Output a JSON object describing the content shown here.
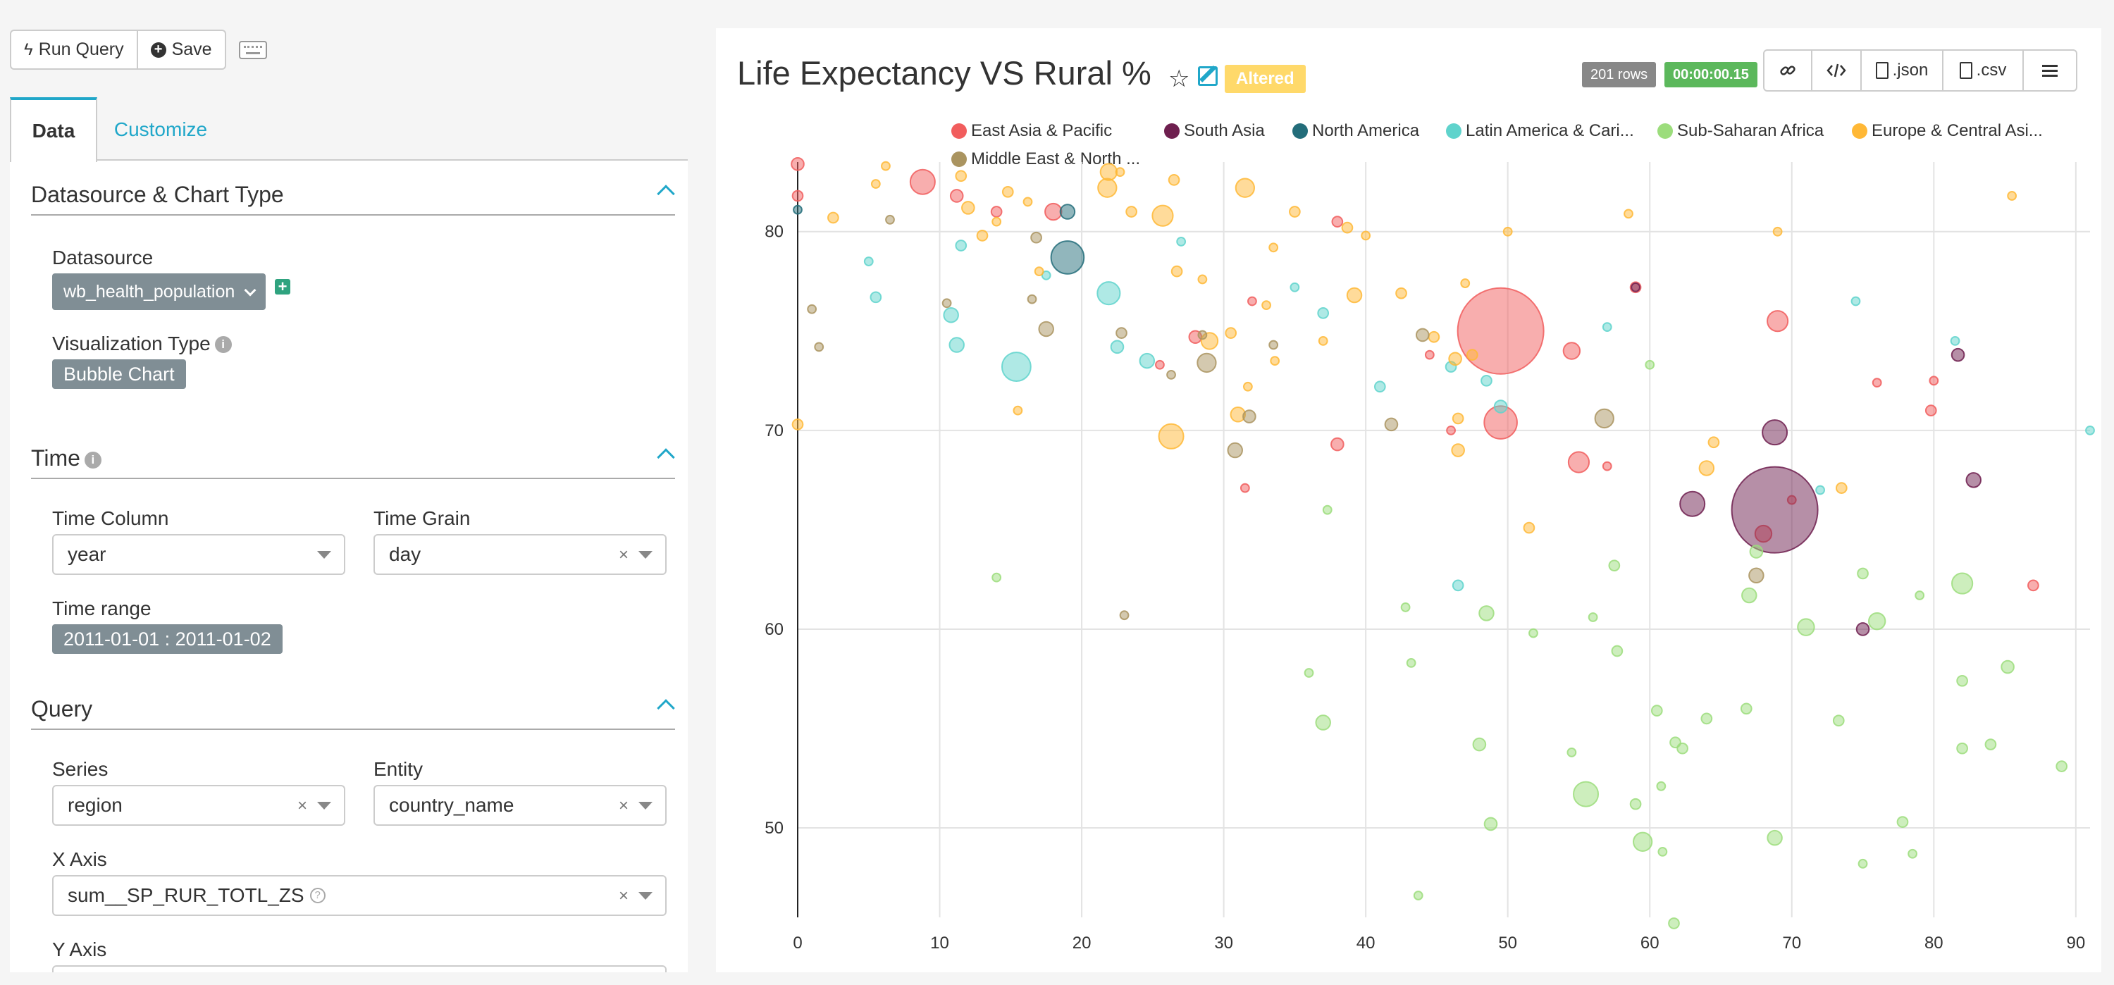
{
  "toolbar": {
    "run_query_label": "Run Query",
    "save_label": "Save"
  },
  "tabs": {
    "data": "Data",
    "customize": "Customize"
  },
  "sections": {
    "datasource": {
      "title": "Datasource & Chart Type",
      "datasource_label": "Datasource",
      "datasource_value": "wb_health_population",
      "viz_type_label": "Visualization Type",
      "viz_type_value": "Bubble Chart"
    },
    "time": {
      "title": "Time",
      "time_column_label": "Time Column",
      "time_column_value": "year",
      "time_grain_label": "Time Grain",
      "time_grain_value": "day",
      "time_range_label": "Time range",
      "time_range_value": "2011-01-01 : 2011-01-02"
    },
    "query": {
      "title": "Query",
      "series_label": "Series",
      "series_value": "region",
      "entity_label": "Entity",
      "entity_value": "country_name",
      "x_axis_label": "X Axis",
      "x_axis_value": "sum__SP_RUR_TOTL_ZS",
      "y_axis_label": "Y Axis"
    }
  },
  "chart_header": {
    "title": "Life Expectancy VS Rural %",
    "altered_label": "Altered",
    "rows_badge": "201 rows",
    "time_badge": "00:00:00.15",
    "json_label": ".json",
    "csv_label": ".csv"
  },
  "chart_data": {
    "type": "scatter",
    "title": "Life Expectancy VS Rural %",
    "xlabel": "",
    "ylabel": "",
    "xlim": [
      0,
      91
    ],
    "ylim": [
      45.5,
      83.5
    ],
    "x_ticks": [
      0,
      10,
      20,
      30,
      40,
      50,
      60,
      70,
      80,
      90
    ],
    "y_ticks": [
      50,
      60,
      70,
      80
    ],
    "grid": true,
    "legend_position": "top",
    "series": [
      {
        "name": "East Asia & Pacific",
        "color": "#f15d5d",
        "points": [
          [
            0,
            83.4,
            2
          ],
          [
            0,
            81.8,
            1.5
          ],
          [
            8.8,
            82.5,
            5
          ],
          [
            11.2,
            81.8,
            2
          ],
          [
            14,
            81,
            1.5
          ],
          [
            18,
            81,
            3
          ],
          [
            49.5,
            75,
            20
          ],
          [
            54.5,
            74,
            3
          ],
          [
            69,
            75.5,
            4
          ],
          [
            49.5,
            70.4,
            7
          ],
          [
            55,
            68.4,
            4
          ],
          [
            57,
            68.2,
            1
          ],
          [
            68,
            64.8,
            3
          ],
          [
            70,
            66.5,
            1
          ],
          [
            79.8,
            71,
            1.5
          ],
          [
            87,
            62.2,
            1.5
          ],
          [
            38,
            69.3,
            2
          ],
          [
            32,
            76.5,
            1
          ],
          [
            25.5,
            73.3,
            1
          ],
          [
            31.5,
            67.1,
            1
          ],
          [
            28,
            74.7,
            2
          ],
          [
            38,
            80.5,
            1.5
          ],
          [
            59,
            77.2,
            1.5
          ],
          [
            46,
            70,
            1
          ],
          [
            44.5,
            73.8,
            1
          ],
          [
            76,
            72.4,
            1
          ],
          [
            80,
            72.5,
            1
          ]
        ]
      },
      {
        "name": "South Asia",
        "color": "#6e1f4f",
        "points": [
          [
            68.8,
            66,
            20
          ],
          [
            63,
            66.3,
            5
          ],
          [
            68.8,
            69.9,
            5
          ],
          [
            82.8,
            67.5,
            2.5
          ],
          [
            81.7,
            73.8,
            2
          ],
          [
            75,
            60,
            2
          ],
          [
            59,
            77.2,
            1
          ]
        ]
      },
      {
        "name": "North America",
        "color": "#236d7a",
        "points": [
          [
            19,
            78.7,
            7
          ],
          [
            19,
            81,
            2.5
          ],
          [
            0,
            81.1,
            1
          ]
        ]
      },
      {
        "name": "Latin America & Cari...",
        "color": "#5fd3cc",
        "points": [
          [
            15.4,
            73.2,
            6
          ],
          [
            21.9,
            76.9,
            4.5
          ],
          [
            11.5,
            79.3,
            1.5
          ],
          [
            10.8,
            75.8,
            2.5
          ],
          [
            11.2,
            74.3,
            2.5
          ],
          [
            22.5,
            74.2,
            2
          ],
          [
            24.6,
            73.5,
            2.5
          ],
          [
            27,
            79.5,
            1
          ],
          [
            35,
            77.2,
            1
          ],
          [
            37,
            75.9,
            1.5
          ],
          [
            41,
            72.2,
            1.5
          ],
          [
            46.5,
            62.2,
            1.5
          ],
          [
            49.5,
            71.2,
            2
          ],
          [
            46,
            73.2,
            1.5
          ],
          [
            57,
            75.2,
            1
          ],
          [
            72,
            67,
            1
          ],
          [
            74.5,
            76.5,
            1
          ],
          [
            81.5,
            74.5,
            1
          ],
          [
            91,
            70,
            1
          ],
          [
            5,
            78.5,
            1
          ],
          [
            5.5,
            76.7,
            1.5
          ],
          [
            48.5,
            72.5,
            1.5
          ],
          [
            17.5,
            77.8,
            1
          ]
        ]
      },
      {
        "name": "Sub-Saharan Africa",
        "color": "#9cdd7c",
        "points": [
          [
            55.5,
            51.7,
            5
          ],
          [
            59.5,
            49.3,
            3.5
          ],
          [
            82,
            62.3,
            4
          ],
          [
            76,
            60.4,
            3
          ],
          [
            71,
            60.1,
            3
          ],
          [
            67,
            61.7,
            2.5
          ],
          [
            68.8,
            49.5,
            2.5
          ],
          [
            37,
            55.3,
            2.5
          ],
          [
            48.5,
            60.8,
            2.5
          ],
          [
            48.8,
            50.2,
            2
          ],
          [
            48,
            54.2,
            2
          ],
          [
            57.5,
            63.2,
            1.5
          ],
          [
            57.7,
            58.9,
            1.5
          ],
          [
            59,
            51.2,
            1.5
          ],
          [
            60.5,
            55.9,
            1.5
          ],
          [
            61.8,
            54.3,
            1.5
          ],
          [
            62.3,
            54.0,
            1.5
          ],
          [
            64,
            55.5,
            1.5
          ],
          [
            66.8,
            56,
            1.5
          ],
          [
            67.5,
            63.9,
            2
          ],
          [
            73.3,
            55.4,
            1.5
          ],
          [
            75,
            62.8,
            1.5
          ],
          [
            77.8,
            50.3,
            1.5
          ],
          [
            82,
            57.4,
            1.5
          ],
          [
            84,
            54.2,
            1.5
          ],
          [
            85.2,
            58.1,
            2
          ],
          [
            89,
            53.1,
            1.5
          ],
          [
            82,
            54.0,
            1.5
          ],
          [
            36,
            57.8,
            1
          ],
          [
            43.2,
            58.3,
            1
          ],
          [
            43.7,
            46.6,
            1
          ],
          [
            51.8,
            59.8,
            1
          ],
          [
            54.5,
            53.8,
            1
          ],
          [
            60.8,
            52.1,
            1
          ],
          [
            61.7,
            45.2,
            1.5
          ],
          [
            60.9,
            48.8,
            1
          ],
          [
            42.8,
            61.1,
            1
          ],
          [
            37.3,
            66,
            1
          ],
          [
            14,
            62.6,
            1
          ],
          [
            79,
            61.7,
            1
          ],
          [
            75,
            48.2,
            1
          ],
          [
            78.5,
            48.7,
            1
          ],
          [
            60,
            73.3,
            1
          ],
          [
            56,
            60.6,
            1
          ]
        ]
      },
      {
        "name": "Europe & Central Asi...",
        "color": "#ffb836",
        "points": [
          [
            26.3,
            69.7,
            5
          ],
          [
            29,
            74.5,
            3
          ],
          [
            31.5,
            82.2,
            3.5
          ],
          [
            25.7,
            80.8,
            4
          ],
          [
            21.8,
            82.2,
            3.5
          ],
          [
            21.9,
            83.0,
            3
          ],
          [
            31,
            70.8,
            2.5
          ],
          [
            39.2,
            76.8,
            2.5
          ],
          [
            46.3,
            73.6,
            2
          ],
          [
            64,
            68.1,
            2.5
          ],
          [
            15.5,
            71,
            1
          ],
          [
            11.5,
            82.8,
            1.5
          ],
          [
            12,
            81.2,
            2
          ],
          [
            13,
            79.8,
            1.5
          ],
          [
            17,
            78,
            1
          ],
          [
            26.7,
            78,
            1.5
          ],
          [
            28.5,
            77.6,
            1
          ],
          [
            30.5,
            74.9,
            1.5
          ],
          [
            33.6,
            73.5,
            1
          ],
          [
            37,
            74.5,
            1
          ],
          [
            42.5,
            76.9,
            1.5
          ],
          [
            44.8,
            74.7,
            1.5
          ],
          [
            47,
            77.4,
            1
          ],
          [
            47.5,
            73.8,
            1.5
          ],
          [
            46.5,
            69,
            2
          ],
          [
            46.5,
            70.6,
            1.5
          ],
          [
            51.5,
            65.1,
            1.5
          ],
          [
            64.5,
            69.4,
            1.5
          ],
          [
            73.5,
            67.1,
            1.5
          ],
          [
            69,
            80.0,
            1
          ],
          [
            58.5,
            80.9,
            1
          ],
          [
            50,
            80,
            1
          ],
          [
            26.5,
            82.6,
            1.5
          ],
          [
            23.5,
            81,
            1.5
          ],
          [
            22.7,
            83.0,
            1
          ],
          [
            14.8,
            82.0,
            1.5
          ],
          [
            14.0,
            80.5,
            1
          ],
          [
            16.2,
            81.5,
            1
          ],
          [
            2.5,
            80.7,
            1.5
          ],
          [
            5.5,
            82.4,
            1
          ],
          [
            6.2,
            83.3,
            1
          ],
          [
            85.5,
            81.8,
            1
          ],
          [
            38.7,
            80.2,
            1.5
          ],
          [
            40,
            79.8,
            1
          ],
          [
            35,
            81,
            1.5
          ],
          [
            33.5,
            79.2,
            1
          ],
          [
            0,
            70.3,
            1.5
          ],
          [
            33,
            76.3,
            1
          ],
          [
            31.7,
            72.2,
            1
          ]
        ]
      },
      {
        "name": "Middle East & North ...",
        "color": "#aa9460",
        "points": [
          [
            28.8,
            73.4,
            3.5
          ],
          [
            30.8,
            69,
            2.5
          ],
          [
            31.8,
            70.7,
            2
          ],
          [
            41.8,
            70.3,
            2
          ],
          [
            56.8,
            70.6,
            3.5
          ],
          [
            17.5,
            75.1,
            2.5
          ],
          [
            16.8,
            79.7,
            1.5
          ],
          [
            10.5,
            76.4,
            1
          ],
          [
            22.8,
            74.9,
            1.5
          ],
          [
            26.3,
            72.8,
            1
          ],
          [
            44,
            74.8,
            2
          ],
          [
            67.5,
            62.7,
            2.5
          ],
          [
            1,
            76.1,
            1
          ],
          [
            1.5,
            74.2,
            1
          ],
          [
            6.5,
            80.6,
            1
          ],
          [
            16.5,
            76.6,
            1
          ],
          [
            23,
            60.7,
            1
          ],
          [
            33.5,
            74.3,
            1
          ],
          [
            28.5,
            74.8,
            1
          ]
        ]
      }
    ]
  }
}
